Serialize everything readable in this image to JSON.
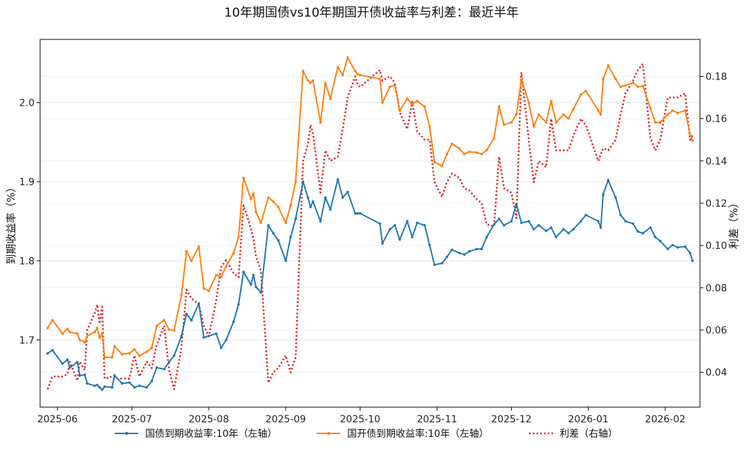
{
  "chart_data": {
    "type": "line",
    "title": "10年期国债vs10年期国开债收益率与利差：最近半年",
    "ylabel_left": "到期收益率（%）",
    "ylabel_right": "利差（%）",
    "x_ticks": [
      "2025-06",
      "2025-07",
      "2025-08",
      "2025-09",
      "2025-10",
      "2025-11",
      "2025-12",
      "2026-01",
      "2026-02"
    ],
    "x_range": [
      "2025-05-25",
      "2026-02-15"
    ],
    "yleft_range": [
      1.615,
      2.08
    ],
    "yleft_ticks": [
      "1.7",
      "1.8",
      "1.9",
      "2.0"
    ],
    "yright_range": [
      0.0235,
      0.1975
    ],
    "yright_ticks": [
      "0.04",
      "0.06",
      "0.08",
      "0.10",
      "0.12",
      "0.14",
      "0.16",
      "0.18"
    ],
    "grid": "horizontal",
    "legend_position": "bottom",
    "colors": {
      "gov": "#1f77b4",
      "cdb": "#ff7f0e",
      "spread": "#e31a1c"
    },
    "x": [
      "2025-05-28",
      "2025-05-30",
      "2025-06-03",
      "2025-06-05",
      "2025-06-06",
      "2025-06-09",
      "2025-06-10",
      "2025-06-12",
      "2025-06-13",
      "2025-06-16",
      "2025-06-17",
      "2025-06-18",
      "2025-06-19",
      "2025-06-20",
      "2025-06-23",
      "2025-06-24",
      "2025-06-27",
      "2025-06-30",
      "2025-07-02",
      "2025-07-04",
      "2025-07-07",
      "2025-07-09",
      "2025-07-11",
      "2025-07-14",
      "2025-07-16",
      "2025-07-18",
      "2025-07-21",
      "2025-07-23",
      "2025-07-25",
      "2025-07-28",
      "2025-07-30",
      "2025-08-01",
      "2025-08-04",
      "2025-08-06",
      "2025-08-08",
      "2025-08-11",
      "2025-08-13",
      "2025-08-15",
      "2025-08-18",
      "2025-08-19",
      "2025-08-20",
      "2025-08-22",
      "2025-08-25",
      "2025-08-27",
      "2025-08-29",
      "2025-09-01",
      "2025-09-03",
      "2025-09-05",
      "2025-09-08",
      "2025-09-10",
      "2025-09-11",
      "2025-09-12",
      "2025-09-15",
      "2025-09-17",
      "2025-09-19",
      "2025-09-22",
      "2025-09-24",
      "2025-09-26",
      "2025-09-29",
      "2025-09-30",
      "2025-10-01",
      "2025-10-09",
      "2025-10-10",
      "2025-10-13",
      "2025-10-15",
      "2025-10-17",
      "2025-10-20",
      "2025-10-22",
      "2025-10-24",
      "2025-10-27",
      "2025-10-29",
      "2025-10-31",
      "2025-11-03",
      "2025-11-05",
      "2025-11-07",
      "2025-11-10",
      "2025-11-12",
      "2025-11-14",
      "2025-11-17",
      "2025-11-19",
      "2025-11-21",
      "2025-11-24",
      "2025-11-26",
      "2025-11-28",
      "2025-12-01",
      "2025-12-03",
      "2025-12-05",
      "2025-12-08",
      "2025-12-10",
      "2025-12-12",
      "2025-12-15",
      "2025-12-17",
      "2025-12-19",
      "2025-12-22",
      "2025-12-24",
      "2025-12-26",
      "2025-12-29",
      "2025-12-31",
      "2026-01-05",
      "2026-01-06",
      "2026-01-07",
      "2026-01-09",
      "2026-01-12",
      "2026-01-14",
      "2026-01-16",
      "2026-01-19",
      "2026-01-21",
      "2026-01-23",
      "2026-01-26",
      "2026-01-28",
      "2026-01-30",
      "2026-02-02",
      "2026-02-04",
      "2026-02-06",
      "2026-02-09",
      "2026-02-11",
      "2026-02-12"
    ],
    "series": [
      {
        "name": "国债到期收益率:10年（左轴）",
        "axis": "left",
        "style": "solid-marker",
        "values": [
          1.683,
          1.687,
          1.67,
          1.675,
          1.665,
          1.672,
          1.655,
          1.656,
          1.645,
          1.642,
          1.643,
          1.64,
          1.637,
          1.641,
          1.64,
          1.655,
          1.645,
          1.646,
          1.64,
          1.642,
          1.64,
          1.648,
          1.665,
          1.663,
          1.672,
          1.68,
          1.705,
          1.733,
          1.725,
          1.746,
          1.703,
          1.705,
          1.708,
          1.69,
          1.7,
          1.723,
          1.745,
          1.786,
          1.77,
          1.782,
          1.767,
          1.76,
          1.845,
          1.835,
          1.826,
          1.8,
          1.83,
          1.853,
          1.9,
          1.88,
          1.868,
          1.875,
          1.85,
          1.88,
          1.865,
          1.903,
          1.88,
          1.887,
          1.86,
          1.86,
          1.86,
          1.847,
          1.822,
          1.84,
          1.845,
          1.827,
          1.85,
          1.83,
          1.848,
          1.845,
          1.82,
          1.795,
          1.797,
          1.805,
          1.814,
          1.81,
          1.808,
          1.812,
          1.815,
          1.815,
          1.83,
          1.846,
          1.853,
          1.845,
          1.85,
          1.872,
          1.848,
          1.85,
          1.84,
          1.845,
          1.838,
          1.842,
          1.83,
          1.84,
          1.835,
          1.84,
          1.85,
          1.858,
          1.85,
          1.842,
          1.884,
          1.902,
          1.88,
          1.858,
          1.85,
          1.847,
          1.837,
          1.835,
          1.842,
          1.83,
          1.825,
          1.815,
          1.82,
          1.817,
          1.818,
          1.81,
          1.8
        ]
      },
      {
        "name": "国开债到期收益率:10年（左轴）",
        "axis": "left",
        "style": "solid-marker",
        "values": [
          1.715,
          1.725,
          1.708,
          1.714,
          1.71,
          1.708,
          1.7,
          1.697,
          1.705,
          1.71,
          1.715,
          1.703,
          1.708,
          1.678,
          1.678,
          1.692,
          1.682,
          1.683,
          1.688,
          1.68,
          1.685,
          1.69,
          1.718,
          1.725,
          1.713,
          1.712,
          1.757,
          1.812,
          1.8,
          1.818,
          1.765,
          1.762,
          1.782,
          1.78,
          1.793,
          1.81,
          1.83,
          1.905,
          1.878,
          1.885,
          1.862,
          1.848,
          1.88,
          1.875,
          1.868,
          1.848,
          1.87,
          1.9,
          2.04,
          2.028,
          2.025,
          2.028,
          1.975,
          2.025,
          2.005,
          2.045,
          2.035,
          2.057,
          2.04,
          2.036,
          2.035,
          2.03,
          2.0,
          2.02,
          2.022,
          1.99,
          2.005,
          1.998,
          2.002,
          1.995,
          1.97,
          1.925,
          1.92,
          1.935,
          1.948,
          1.942,
          1.935,
          1.938,
          1.937,
          1.935,
          1.94,
          1.955,
          1.995,
          1.972,
          1.975,
          1.985,
          2.03,
          2.0,
          1.97,
          1.985,
          1.975,
          2.002,
          1.975,
          1.985,
          1.98,
          1.992,
          2.01,
          2.015,
          1.99,
          1.985,
          2.03,
          2.047,
          2.03,
          2.02,
          2.022,
          2.025,
          2.02,
          2.021,
          1.993,
          1.975,
          1.975,
          1.985,
          1.99,
          1.987,
          1.99,
          1.96,
          1.952
        ]
      },
      {
        "name": "利差（右轴）",
        "axis": "right",
        "style": "dotted",
        "values": [
          0.032,
          0.038,
          0.038,
          0.039,
          0.045,
          0.036,
          0.045,
          0.041,
          0.06,
          0.068,
          0.072,
          0.063,
          0.071,
          0.037,
          0.038,
          0.037,
          0.037,
          0.037,
          0.048,
          0.038,
          0.045,
          0.042,
          0.053,
          0.062,
          0.041,
          0.032,
          0.052,
          0.079,
          0.075,
          0.072,
          0.062,
          0.057,
          0.074,
          0.09,
          0.093,
          0.087,
          0.085,
          0.119,
          0.108,
          0.103,
          0.095,
          0.088,
          0.035,
          0.04,
          0.042,
          0.048,
          0.04,
          0.047,
          0.14,
          0.148,
          0.157,
          0.153,
          0.125,
          0.145,
          0.14,
          0.142,
          0.155,
          0.17,
          0.18,
          0.176,
          0.175,
          0.183,
          0.178,
          0.18,
          0.177,
          0.163,
          0.155,
          0.168,
          0.154,
          0.15,
          0.15,
          0.13,
          0.123,
          0.13,
          0.134,
          0.132,
          0.127,
          0.126,
          0.122,
          0.12,
          0.11,
          0.109,
          0.142,
          0.127,
          0.125,
          0.113,
          0.182,
          0.15,
          0.13,
          0.14,
          0.137,
          0.16,
          0.145,
          0.145,
          0.145,
          0.152,
          0.16,
          0.157,
          0.14,
          0.143,
          0.146,
          0.145,
          0.15,
          0.162,
          0.172,
          0.178,
          0.183,
          0.186,
          0.151,
          0.145,
          0.15,
          0.17,
          0.17,
          0.17,
          0.172,
          0.15,
          0.152
        ]
      }
    ]
  }
}
